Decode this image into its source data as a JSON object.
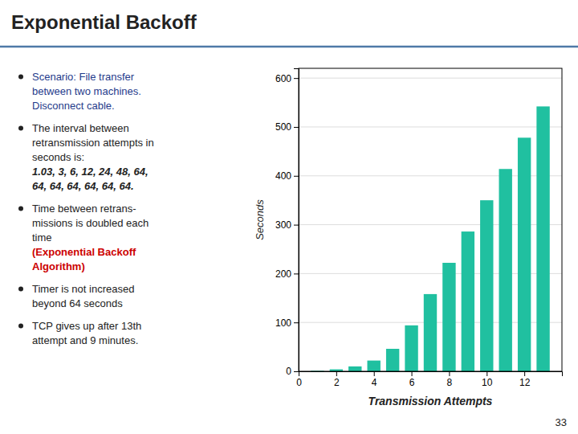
{
  "chart_data": {
    "type": "bar",
    "title": "Exponential Backoff",
    "x": [
      1,
      2,
      3,
      4,
      5,
      6,
      7,
      8,
      9,
      10,
      11,
      12,
      13
    ],
    "values": [
      1.03,
      4.03,
      10.03,
      22.03,
      46.03,
      94.03,
      158.03,
      222.03,
      286.03,
      350.03,
      414.03,
      478.03,
      542.03
    ],
    "color": "#20C0A0",
    "xlabel": "Transmission Attempts",
    "ylabel": "Seconds",
    "xlim": [
      0,
      14
    ],
    "ylim": [
      0,
      620
    ],
    "xticks": [
      0,
      2,
      4,
      6,
      8,
      10,
      12
    ],
    "yticks": [
      0,
      100,
      200,
      300,
      400,
      500,
      600
    ],
    "grid": true,
    "annotations": [
      "Scenario: File transfer\nbetween two machines.\nDisconnect cable.",
      "The interval between\nretransmission attempts in\nseconds is:",
      "1.03, 3, 6, 12, 24, 48, 64,\n64, 64, 64, 64, 64, 64.",
      "Time between retrans-\nmissions is doubled each\ntime",
      "(Exponential Backoff\nAlgorithm)",
      "Timer is not increased\nbeyond 64 seconds",
      "TCP gives up after 13th\nattempt and 9 minutes.",
      "33"
    ]
  }
}
